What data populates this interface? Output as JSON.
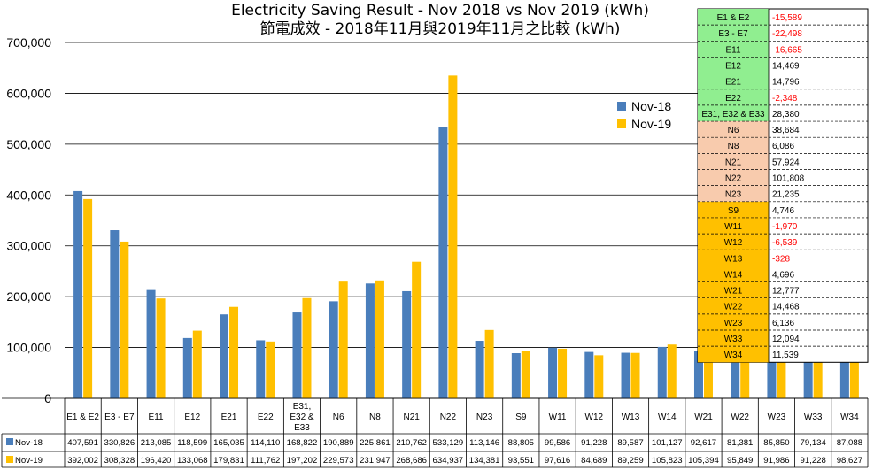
{
  "chart_data": {
    "type": "bar",
    "title": "Electricity Saving Result - Nov 2018 vs Nov 2019 (kWh)",
    "subtitle": "節電成效 - 2018年11月與2019年11月之比較 (kWh)",
    "ylim": [
      0,
      700000
    ],
    "yticks": [
      "0",
      "100,000",
      "200,000",
      "300,000",
      "400,000",
      "500,000",
      "600,000",
      "700,000"
    ],
    "categories": [
      "E1 & E2",
      "E3 - E7",
      "E11",
      "E12",
      "E21",
      "E22",
      "E31, E32 & E33",
      "N6",
      "N8",
      "N21",
      "N22",
      "N23",
      "S9",
      "W11",
      "W12",
      "W13",
      "W14",
      "W21",
      "W22",
      "W23",
      "W33",
      "W34"
    ],
    "series": [
      {
        "name": "Nov-18",
        "color": "#4a7ebb",
        "values": [
          407591,
          330826,
          213085,
          118599,
          165035,
          114110,
          168822,
          190889,
          225861,
          210762,
          533129,
          113146,
          88805,
          99586,
          91228,
          89587,
          101127,
          92617,
          81381,
          85850,
          79134,
          87088
        ],
        "labels": [
          "407,591",
          "330,826",
          "213,085",
          "118,599",
          "165,035",
          "114,110",
          "168,822",
          "190,889",
          "225,861",
          "210,762",
          "533,129",
          "113,146",
          "88,805",
          "99,586",
          "91,228",
          "89,587",
          "101,127",
          "92,617",
          "81,381",
          "85,850",
          "79,134",
          "87,088"
        ]
      },
      {
        "name": "Nov-19",
        "color": "#ffc000",
        "values": [
          392002,
          308328,
          196420,
          133068,
          179831,
          111762,
          197202,
          229573,
          231947,
          268686,
          634937,
          134381,
          93551,
          97616,
          84689,
          89259,
          105823,
          105394,
          95849,
          91986,
          91228,
          98627
        ],
        "labels": [
          "392,002",
          "308,328",
          "196,420",
          "133,068",
          "179,831",
          "111,762",
          "197,202",
          "229,573",
          "231,947",
          "268,686",
          "634,937",
          "134,381",
          "93,551",
          "97,616",
          "84,689",
          "89,259",
          "105,823",
          "105,394",
          "95,849",
          "91,986",
          "91,228",
          "98,627"
        ]
      }
    ],
    "grid": true,
    "legend_position": "upper-right",
    "savings_table": [
      {
        "label": "E1 & E2",
        "value": "-15,589",
        "bg": "#90ee90",
        "negative": true
      },
      {
        "label": "E3 - E7",
        "value": "-22,498",
        "bg": "#90ee90",
        "negative": true
      },
      {
        "label": "E11",
        "value": "-16,665",
        "bg": "#90ee90",
        "negative": true
      },
      {
        "label": "E12",
        "value": "14,469",
        "bg": "#90ee90",
        "negative": false
      },
      {
        "label": "E21",
        "value": "14,796",
        "bg": "#90ee90",
        "negative": false
      },
      {
        "label": "E22",
        "value": "-2,348",
        "bg": "#90ee90",
        "negative": true
      },
      {
        "label": "E31, E32 & E33",
        "value": "28,380",
        "bg": "#90ee90",
        "negative": false
      },
      {
        "label": "N6",
        "value": "38,684",
        "bg": "#f8cbad",
        "negative": false
      },
      {
        "label": "N8",
        "value": "6,086",
        "bg": "#f8cbad",
        "negative": false
      },
      {
        "label": "N21",
        "value": "57,924",
        "bg": "#f8cbad",
        "negative": false
      },
      {
        "label": "N22",
        "value": "101,808",
        "bg": "#f8cbad",
        "negative": false
      },
      {
        "label": "N23",
        "value": "21,235",
        "bg": "#f8cbad",
        "negative": false
      },
      {
        "label": "S9",
        "value": "4,746",
        "bg": "#ffc000",
        "negative": false
      },
      {
        "label": "W11",
        "value": "-1,970",
        "bg": "#ffc000",
        "negative": true
      },
      {
        "label": "W12",
        "value": "-6,539",
        "bg": "#ffc000",
        "negative": true
      },
      {
        "label": "W13",
        "value": "-328",
        "bg": "#ffc000",
        "negative": true
      },
      {
        "label": "W14",
        "value": "4,696",
        "bg": "#ffc000",
        "negative": false
      },
      {
        "label": "W21",
        "value": "12,777",
        "bg": "#ffc000",
        "negative": false
      },
      {
        "label": "W22",
        "value": "14,468",
        "bg": "#ffc000",
        "negative": false
      },
      {
        "label": "W23",
        "value": "6,136",
        "bg": "#ffc000",
        "negative": false
      },
      {
        "label": "W33",
        "value": "12,094",
        "bg": "#ffc000",
        "negative": false
      },
      {
        "label": "W34",
        "value": "11,539",
        "bg": "#ffc000",
        "negative": false
      }
    ],
    "negative_color": "#ff0000"
  }
}
